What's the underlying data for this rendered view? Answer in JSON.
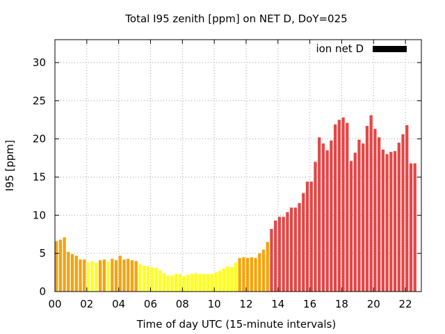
{
  "chart_data": {
    "type": "bar",
    "title": "Total I95 zenith [ppm] on NET D, DoY=025",
    "xlabel": "Time of day UTC (15-minute intervals)",
    "ylabel": "I95 [ppm]",
    "xlim": [
      0,
      23
    ],
    "ylim": [
      0,
      33
    ],
    "xticks": [
      0,
      2,
      4,
      6,
      8,
      10,
      12,
      14,
      16,
      18,
      20,
      22
    ],
    "xtick_labels": [
      "00",
      "02",
      "04",
      "06",
      "08",
      "10",
      "12",
      "14",
      "16",
      "18",
      "20",
      "22"
    ],
    "yticks": [
      0,
      5,
      10,
      15,
      20,
      25,
      30
    ],
    "ytick_labels": [
      "0",
      "5",
      "10",
      "15",
      "20",
      "25",
      "30"
    ],
    "grid": true,
    "bar_step_hours": 0.25,
    "legend": {
      "label": "ion net D",
      "color": "#000000",
      "position": "top-right"
    },
    "colors": {
      "orange": "#f5a30d",
      "yellow": "#ffff1a",
      "red": "#e34747"
    },
    "bars": [
      {
        "t": 0.0,
        "v": 6.6,
        "c": "orange"
      },
      {
        "t": 0.25,
        "v": 6.8,
        "c": "orange"
      },
      {
        "t": 0.5,
        "v": 7.1,
        "c": "orange"
      },
      {
        "t": 0.75,
        "v": 5.2,
        "c": "orange"
      },
      {
        "t": 1.0,
        "v": 4.9,
        "c": "orange"
      },
      {
        "t": 1.25,
        "v": 4.7,
        "c": "orange"
      },
      {
        "t": 1.5,
        "v": 4.2,
        "c": "orange"
      },
      {
        "t": 1.75,
        "v": 4.2,
        "c": "orange"
      },
      {
        "t": 2.0,
        "v": 3.8,
        "c": "yellow"
      },
      {
        "t": 2.25,
        "v": 4.0,
        "c": "yellow"
      },
      {
        "t": 2.5,
        "v": 3.8,
        "c": "yellow"
      },
      {
        "t": 2.75,
        "v": 4.1,
        "c": "orange"
      },
      {
        "t": 3.0,
        "v": 4.2,
        "c": "orange"
      },
      {
        "t": 3.25,
        "v": 3.9,
        "c": "yellow"
      },
      {
        "t": 3.5,
        "v": 4.3,
        "c": "orange"
      },
      {
        "t": 3.75,
        "v": 4.1,
        "c": "orange"
      },
      {
        "t": 4.0,
        "v": 4.7,
        "c": "orange"
      },
      {
        "t": 4.25,
        "v": 4.2,
        "c": "orange"
      },
      {
        "t": 4.5,
        "v": 4.3,
        "c": "orange"
      },
      {
        "t": 4.75,
        "v": 4.1,
        "c": "orange"
      },
      {
        "t": 5.0,
        "v": 4.0,
        "c": "orange"
      },
      {
        "t": 5.25,
        "v": 3.6,
        "c": "yellow"
      },
      {
        "t": 5.5,
        "v": 3.4,
        "c": "yellow"
      },
      {
        "t": 5.75,
        "v": 3.3,
        "c": "yellow"
      },
      {
        "t": 6.0,
        "v": 3.2,
        "c": "yellow"
      },
      {
        "t": 6.25,
        "v": 3.1,
        "c": "yellow"
      },
      {
        "t": 6.5,
        "v": 2.8,
        "c": "yellow"
      },
      {
        "t": 6.75,
        "v": 2.4,
        "c": "yellow"
      },
      {
        "t": 7.0,
        "v": 2.1,
        "c": "yellow"
      },
      {
        "t": 7.25,
        "v": 2.1,
        "c": "yellow"
      },
      {
        "t": 7.5,
        "v": 2.3,
        "c": "yellow"
      },
      {
        "t": 7.75,
        "v": 2.3,
        "c": "yellow"
      },
      {
        "t": 8.0,
        "v": 2.0,
        "c": "yellow"
      },
      {
        "t": 8.25,
        "v": 2.2,
        "c": "yellow"
      },
      {
        "t": 8.5,
        "v": 2.3,
        "c": "yellow"
      },
      {
        "t": 8.75,
        "v": 2.4,
        "c": "yellow"
      },
      {
        "t": 9.0,
        "v": 2.3,
        "c": "yellow"
      },
      {
        "t": 9.25,
        "v": 2.3,
        "c": "yellow"
      },
      {
        "t": 9.5,
        "v": 2.3,
        "c": "yellow"
      },
      {
        "t": 9.75,
        "v": 2.3,
        "c": "yellow"
      },
      {
        "t": 10.0,
        "v": 2.5,
        "c": "yellow"
      },
      {
        "t": 10.25,
        "v": 2.7,
        "c": "yellow"
      },
      {
        "t": 10.5,
        "v": 3.0,
        "c": "yellow"
      },
      {
        "t": 10.75,
        "v": 3.3,
        "c": "yellow"
      },
      {
        "t": 11.0,
        "v": 3.2,
        "c": "yellow"
      },
      {
        "t": 11.25,
        "v": 3.8,
        "c": "yellow"
      },
      {
        "t": 11.5,
        "v": 4.4,
        "c": "orange"
      },
      {
        "t": 11.75,
        "v": 4.5,
        "c": "orange"
      },
      {
        "t": 12.0,
        "v": 4.4,
        "c": "orange"
      },
      {
        "t": 12.25,
        "v": 4.5,
        "c": "orange"
      },
      {
        "t": 12.5,
        "v": 4.4,
        "c": "orange"
      },
      {
        "t": 12.75,
        "v": 5.0,
        "c": "orange"
      },
      {
        "t": 13.0,
        "v": 5.5,
        "c": "orange"
      },
      {
        "t": 13.25,
        "v": 6.5,
        "c": "orange"
      },
      {
        "t": 13.5,
        "v": 8.2,
        "c": "red"
      },
      {
        "t": 13.75,
        "v": 9.3,
        "c": "red"
      },
      {
        "t": 14.0,
        "v": 9.8,
        "c": "red"
      },
      {
        "t": 14.25,
        "v": 9.8,
        "c": "red"
      },
      {
        "t": 14.5,
        "v": 10.4,
        "c": "red"
      },
      {
        "t": 14.75,
        "v": 11.0,
        "c": "red"
      },
      {
        "t": 15.0,
        "v": 11.0,
        "c": "red"
      },
      {
        "t": 15.25,
        "v": 11.6,
        "c": "red"
      },
      {
        "t": 15.5,
        "v": 12.9,
        "c": "red"
      },
      {
        "t": 15.75,
        "v": 14.4,
        "c": "red"
      },
      {
        "t": 16.0,
        "v": 14.4,
        "c": "red"
      },
      {
        "t": 16.25,
        "v": 17.0,
        "c": "red"
      },
      {
        "t": 16.5,
        "v": 20.2,
        "c": "red"
      },
      {
        "t": 16.75,
        "v": 19.4,
        "c": "red"
      },
      {
        "t": 17.0,
        "v": 18.5,
        "c": "red"
      },
      {
        "t": 17.25,
        "v": 19.8,
        "c": "red"
      },
      {
        "t": 17.5,
        "v": 21.9,
        "c": "red"
      },
      {
        "t": 17.75,
        "v": 22.5,
        "c": "red"
      },
      {
        "t": 18.0,
        "v": 22.8,
        "c": "red"
      },
      {
        "t": 18.25,
        "v": 22.1,
        "c": "red"
      },
      {
        "t": 18.5,
        "v": 17.1,
        "c": "red"
      },
      {
        "t": 18.75,
        "v": 18.2,
        "c": "red"
      },
      {
        "t": 19.0,
        "v": 19.9,
        "c": "red"
      },
      {
        "t": 19.25,
        "v": 19.4,
        "c": "red"
      },
      {
        "t": 19.5,
        "v": 21.7,
        "c": "red"
      },
      {
        "t": 19.75,
        "v": 23.1,
        "c": "red"
      },
      {
        "t": 20.0,
        "v": 21.3,
        "c": "red"
      },
      {
        "t": 20.25,
        "v": 20.2,
        "c": "red"
      },
      {
        "t": 20.5,
        "v": 18.6,
        "c": "red"
      },
      {
        "t": 20.75,
        "v": 18.0,
        "c": "red"
      },
      {
        "t": 21.0,
        "v": 18.3,
        "c": "red"
      },
      {
        "t": 21.25,
        "v": 18.4,
        "c": "red"
      },
      {
        "t": 21.5,
        "v": 19.5,
        "c": "red"
      },
      {
        "t": 21.75,
        "v": 20.6,
        "c": "red"
      },
      {
        "t": 22.0,
        "v": 21.8,
        "c": "red"
      },
      {
        "t": 22.25,
        "v": 16.8,
        "c": "red"
      },
      {
        "t": 22.5,
        "v": 16.8,
        "c": "red"
      }
    ]
  }
}
